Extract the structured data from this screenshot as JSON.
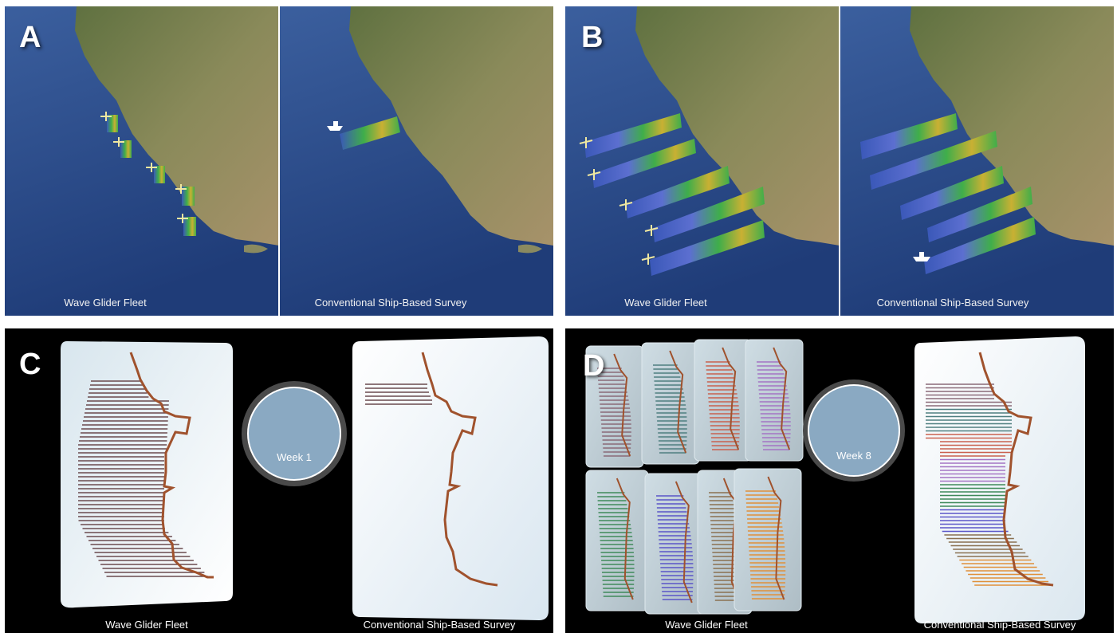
{
  "panels": {
    "a": {
      "letter": "A",
      "left_caption": "Wave Glider Fleet",
      "right_caption": "Conventional Ship-Based Survey"
    },
    "b": {
      "letter": "B",
      "left_caption": "Wave Glider Fleet",
      "right_caption": "Conventional Ship-Based Survey"
    },
    "c": {
      "letter": "C",
      "week": "Week 1",
      "left_caption": "Wave Glider Fleet",
      "right_caption": "Conventional Ship-Based Survey"
    },
    "d": {
      "letter": "D",
      "week": "Week 8",
      "left_caption": "Wave Glider Fleet",
      "right_caption": "Conventional Ship-Based Survey"
    }
  },
  "colors": {
    "ocean": "#2c4f8f",
    "land": "#6d7b45",
    "coastline": "#a0522d",
    "transect": "#6a4a4e",
    "week_disc": "#8aa9c2",
    "fleet_colors": [
      "#8a6a78",
      "#4f7f80",
      "#c9614f",
      "#a474c4",
      "#3f8a5a",
      "#5a55c8",
      "#8a7050",
      "#e0903a"
    ]
  },
  "icons": [
    "glider-icon",
    "ship-icon",
    "coastline-map"
  ]
}
